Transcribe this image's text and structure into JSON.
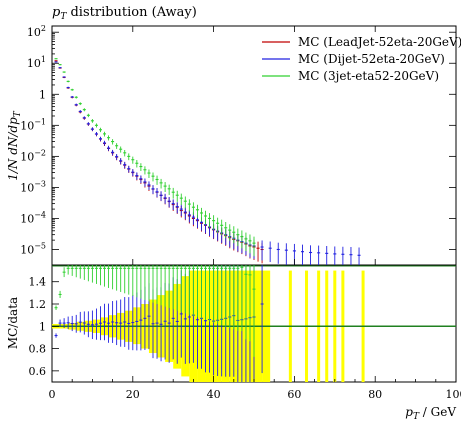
{
  "chart_data": {
    "type": "scatter",
    "title": "p_T distribution (Away)",
    "title_parts": {
      "p": "p",
      "sub": "T",
      "rest": " distribution (Away)"
    },
    "xlabel": "p_T / GeV",
    "xlabel_parts": {
      "p": "p",
      "sub": "T",
      "rest": " / GeV"
    },
    "ylabel_main": "1/N dN/dp_T",
    "ylabel_main_text": "1/N dN/dp",
    "ylabel_main_sub": "T",
    "ylabel_ratio": "MC/data",
    "xlim": [
      0,
      100
    ],
    "ylim_main_log10": [
      -5.5,
      2.2
    ],
    "ylim_ratio": [
      0.5,
      1.55
    ],
    "x_ticks": [
      "0",
      "20",
      "40",
      "60",
      "80",
      "100"
    ],
    "x_tick_values": [
      0,
      20,
      40,
      60,
      80,
      100
    ],
    "y_ticks_main": [
      {
        "exp": -5,
        "label": "10",
        "sup": "−5"
      },
      {
        "exp": -4,
        "label": "10",
        "sup": "−4"
      },
      {
        "exp": -3,
        "label": "10",
        "sup": "−3"
      },
      {
        "exp": -2,
        "label": "10",
        "sup": "−2"
      },
      {
        "exp": -1,
        "label": "10",
        "sup": "−1"
      },
      {
        "exp": 0,
        "label": "1",
        "sup": ""
      },
      {
        "exp": 1,
        "label": "10",
        "sup": "1"
      },
      {
        "exp": 2,
        "label": "10",
        "sup": "2"
      }
    ],
    "y_ticks_ratio": [
      "0.6",
      "0.8",
      "1",
      "1.2",
      "1.4"
    ],
    "y_tick_values_ratio": [
      0.6,
      0.8,
      1.0,
      1.2,
      1.4
    ],
    "legend_position": "top-right",
    "series": [
      {
        "name": "MC (LeadJet-52eta-20GeV)",
        "color": "#c00000",
        "x": [
          1,
          2,
          3,
          4,
          5,
          6,
          7,
          8,
          9,
          10,
          11,
          12,
          13,
          14,
          15,
          16,
          17,
          18,
          19,
          20,
          21,
          22,
          23,
          24,
          25,
          26,
          27,
          28,
          29,
          30,
          31,
          32,
          33,
          34,
          35,
          36,
          37,
          38,
          39,
          40,
          41,
          42,
          43,
          44,
          45,
          46,
          47,
          48,
          49,
          50,
          51,
          52
        ],
        "y": [
          12,
          7,
          3.5,
          1.6,
          0.8,
          0.45,
          0.27,
          0.17,
          0.11,
          0.075,
          0.052,
          0.036,
          0.026,
          0.018,
          0.013,
          0.0095,
          0.007,
          0.0052,
          0.0039,
          0.003,
          0.0023,
          0.0018,
          0.0014,
          0.0011,
          0.00088,
          0.0007,
          0.00055,
          0.00044,
          0.00035,
          0.00028,
          0.00023,
          0.00018,
          0.00015,
          0.00012,
          0.0001,
          8.5e-05,
          7e-05,
          6e-05,
          5e-05,
          4.3e-05,
          3.7e-05,
          3.2e-05,
          2.8e-05,
          2.4e-05,
          2.1e-05,
          1.9e-05,
          1.7e-05,
          1.5e-05,
          1.3e-05,
          1.2e-05,
          1.1e-05,
          1e-05
        ]
      },
      {
        "name": "MC (Dijet-52eta-20GeV)",
        "color": "#2020e0",
        "x": [
          1,
          2,
          3,
          4,
          5,
          6,
          7,
          8,
          9,
          10,
          11,
          12,
          13,
          14,
          15,
          16,
          17,
          18,
          19,
          20,
          21,
          22,
          23,
          24,
          25,
          26,
          27,
          28,
          29,
          30,
          31,
          32,
          33,
          34,
          35,
          36,
          37,
          38,
          39,
          40,
          41,
          42,
          43,
          44,
          45,
          46,
          47,
          48,
          49,
          50,
          52,
          54,
          56,
          58,
          60,
          62,
          64,
          66,
          68,
          70,
          72,
          74,
          76
        ],
        "y": [
          11,
          7.2,
          3.6,
          1.65,
          0.82,
          0.46,
          0.28,
          0.175,
          0.112,
          0.076,
          0.053,
          0.037,
          0.027,
          0.0185,
          0.0135,
          0.0098,
          0.0072,
          0.0054,
          0.004,
          0.0031,
          0.0024,
          0.0019,
          0.0015,
          0.0012,
          0.0009,
          0.00072,
          0.00056,
          0.00046,
          0.00036,
          0.0003,
          0.00024,
          0.0002,
          0.00016,
          0.00013,
          0.00011,
          9e-05,
          7.5e-05,
          6.3e-05,
          5.3e-05,
          4.5e-05,
          3.9e-05,
          3.4e-05,
          3e-05,
          2.6e-05,
          2.3e-05,
          2e-05,
          1.8e-05,
          1.6e-05,
          1.4e-05,
          1.3e-05,
          1.2e-05,
          1.1e-05,
          1e-05,
          9.5e-06,
          9e-06,
          8.5e-06,
          8e-06,
          7.8e-06,
          7.5e-06,
          7.2e-06,
          7e-06,
          6.8e-06,
          6.5e-06
        ]
      },
      {
        "name": "MC (3jet-eta52-20GeV)",
        "color": "#30d030",
        "x": [
          1,
          2,
          3,
          4,
          5,
          6,
          7,
          8,
          9,
          10,
          11,
          12,
          13,
          14,
          15,
          16,
          17,
          18,
          19,
          20,
          21,
          22,
          23,
          24,
          25,
          26,
          27,
          28,
          29,
          30,
          31,
          32,
          33,
          34,
          35,
          36,
          37,
          38,
          39,
          40,
          41,
          42,
          43,
          44,
          45,
          46,
          47,
          48,
          49,
          50
        ],
        "y": [
          14,
          9,
          5.2,
          2.6,
          1.4,
          0.8,
          0.5,
          0.32,
          0.21,
          0.14,
          0.1,
          0.072,
          0.053,
          0.04,
          0.03,
          0.022,
          0.017,
          0.013,
          0.01,
          0.0078,
          0.006,
          0.0047,
          0.0037,
          0.0029,
          0.0023,
          0.0018,
          0.0014,
          0.0011,
          0.0009,
          0.0007,
          0.00056,
          0.00045,
          0.00036,
          0.00029,
          0.00023,
          0.00019,
          0.00015,
          0.00012,
          0.0001,
          8.5e-05,
          7e-05,
          6e-05,
          5e-05,
          4.2e-05,
          3.6e-05,
          3e-05,
          2.6e-05,
          2.2e-05,
          1.9e-05,
          1.6e-05
        ]
      }
    ],
    "ratio_band": {
      "color": "#ffff00",
      "x": [
        0,
        2,
        4,
        6,
        8,
        10,
        12,
        14,
        16,
        18,
        20,
        22,
        24,
        26,
        28,
        30,
        32,
        34,
        36,
        38,
        40,
        42,
        44,
        46,
        48,
        50,
        52,
        54
      ],
      "lo": [
        0.98,
        0.98,
        0.97,
        0.96,
        0.95,
        0.94,
        0.92,
        0.9,
        0.88,
        0.86,
        0.84,
        0.8,
        0.76,
        0.72,
        0.68,
        0.62,
        0.55,
        0.5,
        0.5,
        0.5,
        0.5,
        0.5,
        0.5,
        0.5,
        0.5,
        0.5,
        0.5,
        0.5
      ],
      "hi": [
        1.02,
        1.02,
        1.03,
        1.04,
        1.05,
        1.06,
        1.08,
        1.1,
        1.12,
        1.14,
        1.17,
        1.2,
        1.24,
        1.28,
        1.32,
        1.38,
        1.45,
        1.5,
        1.5,
        1.5,
        1.5,
        1.5,
        1.5,
        1.5,
        1.5,
        1.5,
        1.5,
        1.5
      ]
    }
  }
}
